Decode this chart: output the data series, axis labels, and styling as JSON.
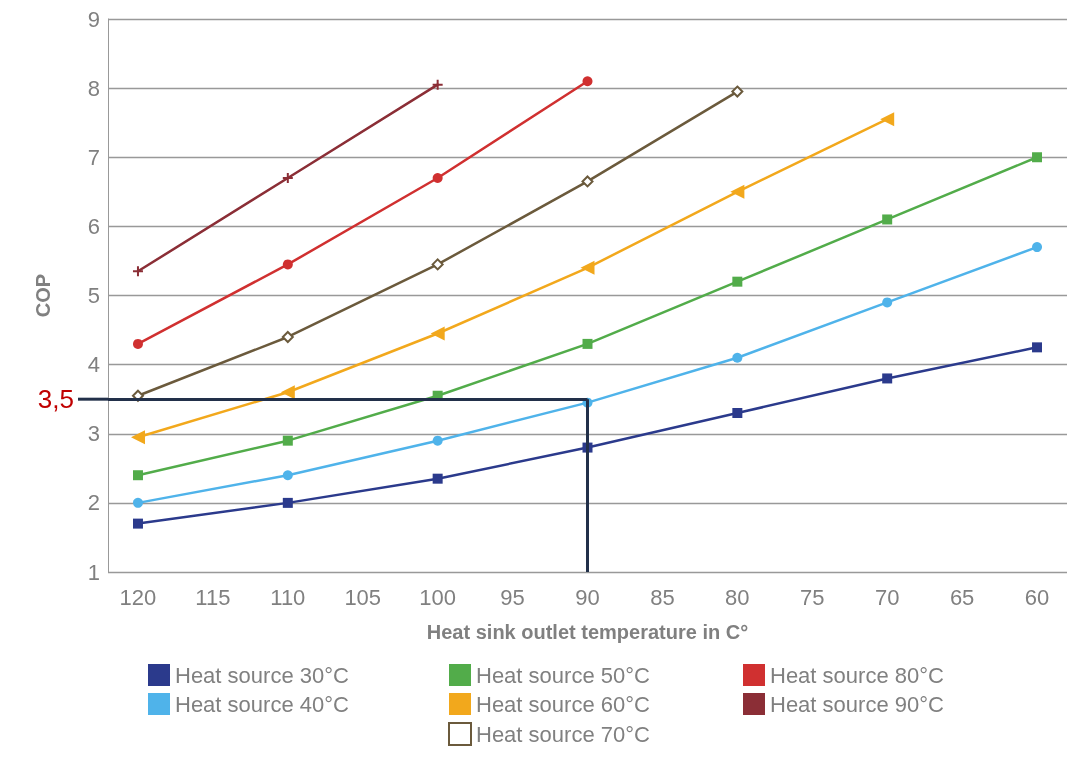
{
  "chart_data": {
    "type": "line",
    "xlabel": "Heat sink outlet temperature in C°",
    "ylabel": "COP",
    "x": [
      120,
      110,
      100,
      90,
      80,
      70,
      60
    ],
    "xlim": [
      122,
      58
    ],
    "xticks": [
      120,
      115,
      110,
      105,
      100,
      95,
      90,
      85,
      80,
      75,
      70,
      65,
      60
    ],
    "ylim": [
      1,
      9
    ],
    "yticks": [
      1,
      2,
      3,
      4,
      5,
      6,
      7,
      8,
      9
    ],
    "grid": "y",
    "legend": "bottom",
    "line_style": "solid",
    "series": [
      {
        "name": "Heat source 30°C",
        "color": "#2b3a8c",
        "marker": "square",
        "values": [
          1.7,
          2.0,
          2.35,
          2.8,
          3.3,
          3.8,
          4.25
        ]
      },
      {
        "name": "Heat source 40°C",
        "color": "#4fb3ea",
        "marker": "circle",
        "values": [
          2.0,
          2.4,
          2.9,
          3.45,
          4.1,
          4.9,
          5.7
        ]
      },
      {
        "name": "Heat source 50°C",
        "color": "#52ac4a",
        "marker": "square",
        "values": [
          2.4,
          2.9,
          3.55,
          4.3,
          5.2,
          6.1,
          7.0
        ]
      },
      {
        "name": "Heat source 60°C",
        "color": "#f2a81c",
        "marker": "triangle",
        "values": [
          2.95,
          3.6,
          4.45,
          5.4,
          6.5,
          7.55,
          null
        ]
      },
      {
        "name": "Heat source 70°C",
        "color": "#6b5a3c",
        "marker": "diamond",
        "values": [
          3.55,
          4.4,
          5.45,
          6.65,
          7.95,
          null,
          null
        ]
      },
      {
        "name": "Heat source 80°C",
        "color": "#d03030",
        "marker": "circle",
        "values": [
          4.3,
          5.45,
          6.7,
          8.1,
          null,
          null,
          null
        ]
      },
      {
        "name": "Heat source 90°C",
        "color": "#8b2e36",
        "marker": "cross",
        "values": [
          5.35,
          6.7,
          8.05,
          null,
          null,
          null,
          null
        ]
      }
    ],
    "ref_lines": [
      {
        "axis": "y",
        "value": 3.5,
        "label": "3,5",
        "color": "#22304a"
      },
      {
        "axis": "x",
        "value": 90,
        "label": null,
        "color": "#22304a"
      }
    ]
  }
}
